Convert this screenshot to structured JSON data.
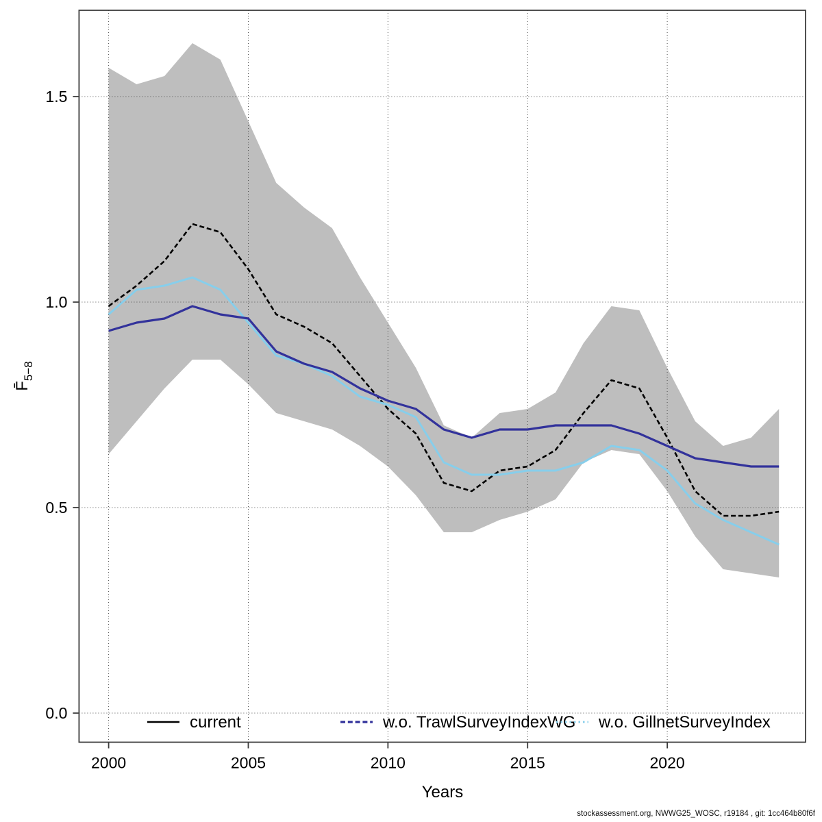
{
  "footer": {
    "text": "stockassessment.org, NWWG25_WOSC, r19184 , git: 1cc464b80f6f"
  },
  "chart_data": {
    "type": "line",
    "title": "",
    "xlabel": "Years",
    "ylabel": "F̄5−8",
    "ylabel_main": "F̄",
    "ylabel_sub": "5−8",
    "grid": "dotted",
    "legend_position": "bottom-inside",
    "xlim": [
      1999,
      2025
    ],
    "ylim": [
      -0.07,
      1.71
    ],
    "xticks": [
      2000,
      2005,
      2010,
      2015,
      2020
    ],
    "yticks_labels": [
      "0.0",
      "0.5",
      "1.0",
      "1.5"
    ],
    "yticks_values": [
      0.0,
      0.5,
      1.0,
      1.5
    ],
    "x": [
      2000,
      2001,
      2002,
      2003,
      2004,
      2005,
      2006,
      2007,
      2008,
      2009,
      2010,
      2011,
      2012,
      2013,
      2014,
      2015,
      2016,
      2017,
      2018,
      2019,
      2020,
      2021,
      2022,
      2023,
      2024
    ],
    "series": [
      {
        "name": "current",
        "color": "#000000",
        "style": "dashed",
        "width": 2.6,
        "values": [
          0.99,
          1.04,
          1.1,
          1.19,
          1.17,
          1.08,
          0.97,
          0.94,
          0.9,
          0.82,
          0.74,
          0.68,
          0.56,
          0.54,
          0.59,
          0.6,
          0.64,
          0.73,
          0.81,
          0.79,
          0.67,
          0.54,
          0.48,
          0.48,
          0.49
        ]
      },
      {
        "name": "w.o. GillnetSurveyIndex",
        "color": "#87CEEB",
        "style": "solid",
        "width": 3,
        "values": [
          0.97,
          1.03,
          1.04,
          1.06,
          1.03,
          0.95,
          0.87,
          0.85,
          0.82,
          0.77,
          0.75,
          0.72,
          0.61,
          0.58,
          0.58,
          0.59,
          0.59,
          0.61,
          0.65,
          0.64,
          0.59,
          0.51,
          0.47,
          0.44,
          0.41
        ]
      },
      {
        "name": "w.o. TrawlSurveyIndexWG",
        "color": "#32329B",
        "style": "solid",
        "width": 3.2,
        "values": [
          0.93,
          0.95,
          0.96,
          0.99,
          0.97,
          0.96,
          0.88,
          0.85,
          0.83,
          0.79,
          0.76,
          0.74,
          0.69,
          0.67,
          0.69,
          0.69,
          0.7,
          0.7,
          0.7,
          0.68,
          0.65,
          0.62,
          0.61,
          0.6,
          0.6
        ]
      }
    ],
    "band": {
      "belongs_to": "current",
      "color": "#BEBEBE",
      "upper": [
        1.57,
        1.53,
        1.55,
        1.63,
        1.59,
        1.44,
        1.29,
        1.23,
        1.18,
        1.06,
        0.95,
        0.84,
        0.7,
        0.67,
        0.73,
        0.74,
        0.78,
        0.9,
        0.99,
        0.98,
        0.84,
        0.71,
        0.65,
        0.67,
        0.74
      ],
      "lower": [
        0.63,
        0.71,
        0.79,
        0.86,
        0.86,
        0.8,
        0.73,
        0.71,
        0.69,
        0.65,
        0.6,
        0.53,
        0.44,
        0.44,
        0.47,
        0.49,
        0.52,
        0.61,
        0.64,
        0.63,
        0.54,
        0.43,
        0.35,
        0.34,
        0.33
      ]
    },
    "legend": [
      {
        "label": "current",
        "color": "#000000",
        "line": "solid",
        "width": 2.6
      },
      {
        "label": "w.o. TrawlSurveyIndexWG",
        "color": "#32329B",
        "line": "dashed",
        "width": 3.2
      },
      {
        "label": "w.o. GillnetSurveyIndex",
        "color": "#87CEEB",
        "line": "dotted",
        "width": 2.8
      }
    ]
  }
}
